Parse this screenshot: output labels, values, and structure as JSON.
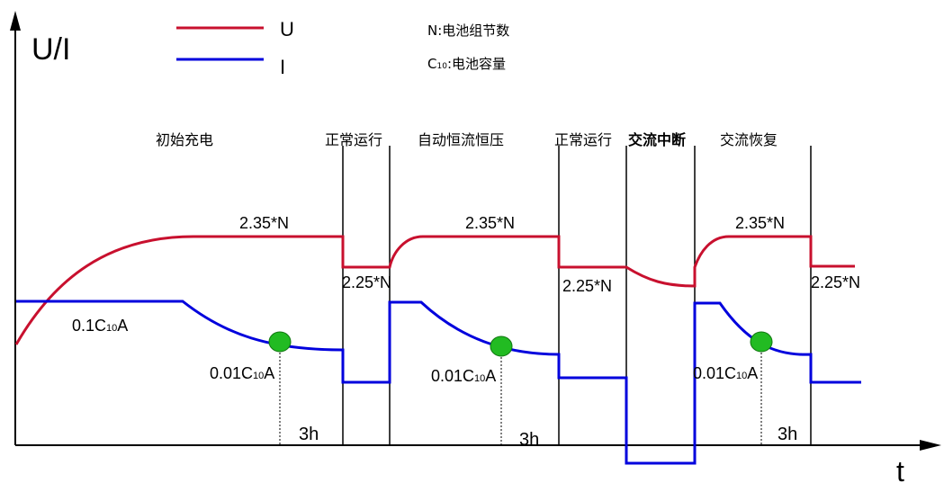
{
  "axes": {
    "y_label": "U/I",
    "x_label": "t"
  },
  "legend": {
    "u_label": "U",
    "i_label": "I",
    "u_color": "#c8102e",
    "i_color": "#0000dd",
    "note_n": "N:电池组节数",
    "note_c_prefix": "C",
    "note_c_sub": "10",
    "note_c_text": ":电池容量"
  },
  "phases": {
    "p1": "初始充电",
    "p2": "正常运行",
    "p3": "自动恒流恒压",
    "p4": "正常运行",
    "p5": "交流中断",
    "p6": "交流恢复"
  },
  "annotations": {
    "v_high_1": "2.35*N",
    "v_high_2": "2.35*N",
    "v_high_3": "2.35*N",
    "v_float_1": "2.25*N",
    "v_float_2": "2.25*N",
    "v_float_3": "2.25*N",
    "i_init_pre": "0.1C",
    "i_init_sub": "10",
    "i_init_post": "A",
    "i_low1_pre": "0.01C",
    "i_low1_sub": "10",
    "i_low1_post": "A",
    "i_low2_pre": "0.01C",
    "i_low2_sub": "10",
    "i_low2_post": "A",
    "i_low3_pre": "0.01C",
    "i_low3_sub": "10",
    "i_low3_post": "A",
    "h1": "3h",
    "h2": "3h",
    "h3": "3h"
  },
  "marker_color": "#22bb22"
}
